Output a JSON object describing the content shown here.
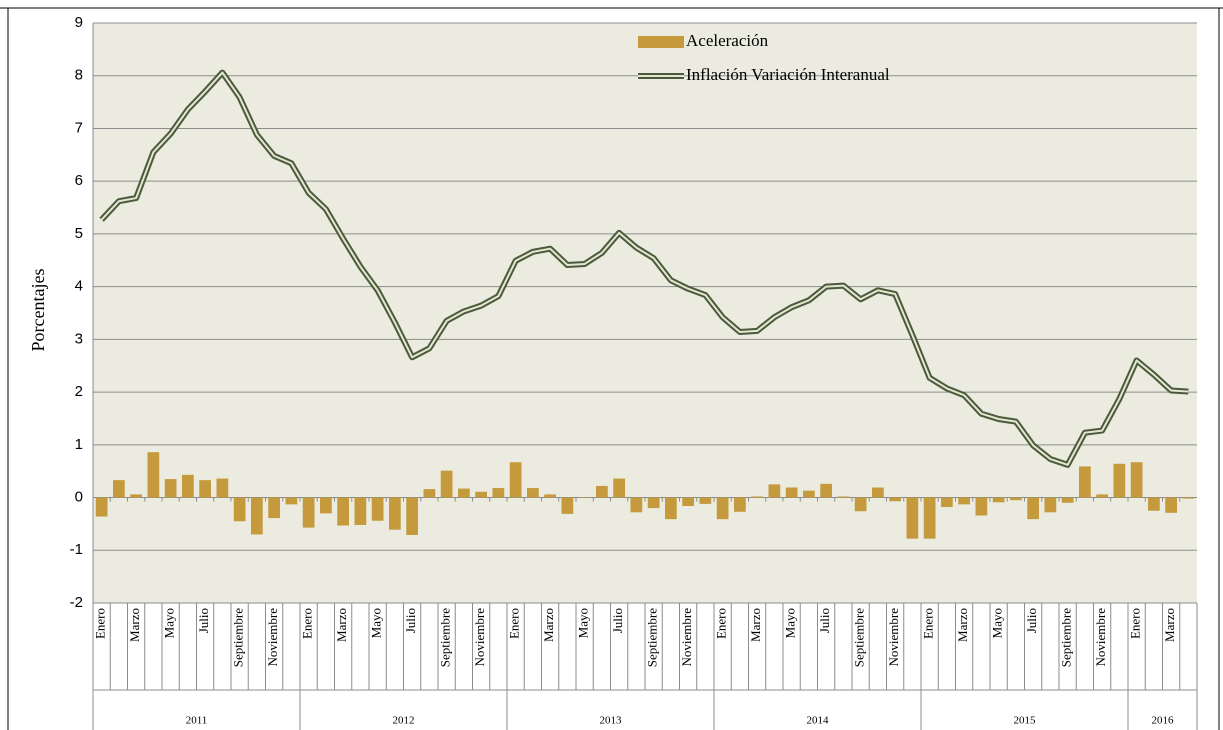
{
  "chart_data": {
    "type": "combo",
    "y_label": "Porcentajes",
    "categories": [
      "Enero",
      null,
      "Marzo",
      null,
      "Mayo",
      null,
      "Julio",
      null,
      "Septiembre",
      null,
      "Noviembre",
      null,
      "Enero",
      null,
      "Marzo",
      null,
      "Mayo",
      null,
      "Julio",
      null,
      "Septiembre",
      null,
      "Noviembre",
      null,
      "Enero",
      null,
      "Marzo",
      null,
      "Mayo",
      null,
      "Julio",
      null,
      "Septiembre",
      null,
      "Noviembre",
      null,
      "Enero",
      null,
      "Marzo",
      null,
      "Mayo",
      null,
      "Julio",
      null,
      "Septiembre",
      null,
      "Noviembre",
      null,
      "Enero",
      null,
      "Marzo",
      null,
      "Mayo",
      null,
      "Julio",
      null,
      "Septiembre",
      null,
      "Noviembre",
      null,
      "Enero",
      null,
      "Marzo",
      null
    ],
    "groups": [
      {
        "label": "2011",
        "span": 12
      },
      {
        "label": "2012",
        "span": 12
      },
      {
        "label": "2013",
        "span": 12
      },
      {
        "label": "2014",
        "span": 12
      },
      {
        "label": "2015",
        "span": 12
      },
      {
        "label": "2016",
        "span": 4
      }
    ],
    "series": [
      {
        "name": "Aceleración",
        "type": "bar",
        "color": "#c49a3c",
        "values": [
          -0.36,
          0.33,
          0.06,
          0.86,
          0.35,
          0.43,
          0.33,
          0.36,
          -0.45,
          -0.7,
          -0.39,
          -0.13,
          -0.57,
          -0.3,
          -0.53,
          -0.52,
          -0.44,
          -0.61,
          -0.71,
          0.16,
          0.51,
          0.17,
          0.11,
          0.18,
          0.67,
          0.18,
          0.06,
          -0.31,
          0.01,
          0.22,
          0.36,
          -0.28,
          -0.2,
          -0.41,
          -0.16,
          -0.12,
          -0.41,
          -0.27,
          0.02,
          0.25,
          0.19,
          0.13,
          0.26,
          0.02,
          -0.26,
          0.19,
          -0.07,
          -0.78,
          -0.78,
          -0.18,
          -0.13,
          -0.34,
          -0.09,
          -0.05,
          -0.41,
          -0.28,
          -0.1,
          0.59,
          0.06,
          0.64,
          0.67,
          -0.25,
          -0.29,
          -0.02
        ]
      },
      {
        "name": "Inflación Variación Interanual",
        "type": "line",
        "color": "#4b5a3c",
        "values": [
          5.27,
          5.62,
          5.68,
          6.55,
          6.9,
          7.36,
          7.7,
          8.06,
          7.59,
          6.88,
          6.48,
          6.34,
          5.78,
          5.47,
          4.91,
          4.38,
          3.93,
          3.32,
          2.66,
          2.83,
          3.35,
          3.53,
          3.64,
          3.82,
          4.49,
          4.66,
          4.72,
          4.41,
          4.43,
          4.64,
          5.02,
          4.74,
          4.54,
          4.12,
          3.96,
          3.84,
          3.42,
          3.14,
          3.16,
          3.42,
          3.61,
          3.74,
          4.0,
          4.02,
          3.76,
          3.93,
          3.86,
          3.08,
          2.27,
          2.07,
          1.94,
          1.59,
          1.49,
          1.44,
          0.99,
          0.73,
          0.62,
          1.23,
          1.27,
          1.87,
          2.6,
          2.33,
          2.03,
          2.01
        ]
      }
    ],
    "ylim": [
      -2,
      9
    ],
    "yticks": [
      -2,
      -1,
      0,
      1,
      2,
      3,
      4,
      5,
      6,
      7,
      8,
      9
    ],
    "grid": true
  }
}
